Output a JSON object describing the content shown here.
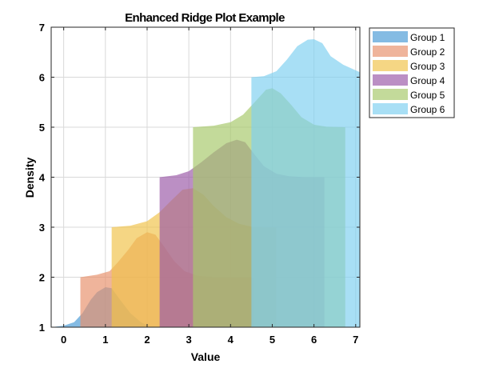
{
  "chart_data": {
    "type": "area",
    "title": "Enhanced Ridge Plot Example",
    "xlabel": "Value",
    "ylabel": "Density",
    "xlim": [
      -0.3,
      7.1
    ],
    "ylim": [
      1,
      7
    ],
    "xticks": [
      0,
      1,
      2,
      3,
      4,
      5,
      6,
      7
    ],
    "yticks": [
      1,
      2,
      3,
      4,
      5,
      6,
      7
    ],
    "grid": true,
    "legend_position": "outside-top-right",
    "baseline": 1,
    "series": [
      {
        "name": "Group 1",
        "color": "#4a9bd6",
        "offset": 1,
        "x_range": [
          -0.3,
          6.25
        ],
        "x": [
          -0.3,
          0.0,
          0.25,
          0.45,
          0.65,
          0.8,
          1.0,
          1.15,
          1.35,
          1.6,
          1.85,
          2.05,
          6.25
        ],
        "y": [
          1.0,
          1.03,
          1.1,
          1.28,
          1.55,
          1.7,
          1.8,
          1.78,
          1.55,
          1.28,
          1.1,
          1.02,
          1.0
        ]
      },
      {
        "name": "Group 2",
        "color": "#e8916c",
        "offset": 2,
        "x_range": [
          0.4,
          4.55
        ],
        "x": [
          0.4,
          0.8,
          1.1,
          1.3,
          1.55,
          1.75,
          2.0,
          2.2,
          2.4,
          2.65,
          2.9,
          3.2,
          3.6,
          4.55
        ],
        "y": [
          2.0,
          2.05,
          2.12,
          2.3,
          2.55,
          2.78,
          2.9,
          2.85,
          2.62,
          2.32,
          2.12,
          2.03,
          2.0,
          2.0
        ]
      },
      {
        "name": "Group 3",
        "color": "#f0c24a",
        "offset": 3,
        "x_range": [
          1.15,
          5.1
        ],
        "x": [
          1.15,
          1.6,
          2.0,
          2.3,
          2.6,
          2.85,
          3.1,
          3.35,
          3.6,
          3.9,
          4.2,
          4.5,
          4.8,
          5.1
        ],
        "y": [
          3.0,
          3.03,
          3.12,
          3.3,
          3.55,
          3.75,
          3.78,
          3.65,
          3.42,
          3.2,
          3.07,
          3.01,
          3.0,
          3.0
        ]
      },
      {
        "name": "Group 4",
        "color": "#9b5aa8",
        "offset": 4,
        "x_range": [
          2.3,
          6.25
        ],
        "x": [
          2.3,
          2.7,
          3.0,
          3.3,
          3.6,
          3.9,
          4.15,
          4.35,
          4.55,
          4.8,
          5.1,
          5.4,
          5.8,
          6.25
        ],
        "y": [
          4.0,
          4.04,
          4.12,
          4.3,
          4.5,
          4.68,
          4.75,
          4.7,
          4.48,
          4.22,
          4.07,
          4.02,
          4.0,
          4.0
        ]
      },
      {
        "name": "Group 5",
        "color": "#a6c86a",
        "offset": 5,
        "x_range": [
          3.1,
          6.75
        ],
        "x": [
          3.1,
          3.6,
          4.0,
          4.3,
          4.6,
          4.85,
          5.0,
          5.2,
          5.45,
          5.7,
          6.0,
          6.3,
          6.75
        ],
        "y": [
          5.0,
          5.03,
          5.1,
          5.25,
          5.52,
          5.75,
          5.78,
          5.68,
          5.45,
          5.2,
          5.05,
          5.01,
          5.0
        ]
      },
      {
        "name": "Group 6",
        "color": "#7fd0f0",
        "offset": 6,
        "x_range": [
          4.5,
          7.1
        ],
        "x": [
          4.5,
          4.8,
          5.1,
          5.35,
          5.6,
          5.85,
          6.0,
          6.2,
          6.4,
          6.7,
          7.1
        ],
        "y": [
          6.0,
          6.02,
          6.12,
          6.35,
          6.62,
          6.75,
          6.76,
          6.68,
          6.42,
          6.25,
          6.1
        ]
      }
    ]
  }
}
